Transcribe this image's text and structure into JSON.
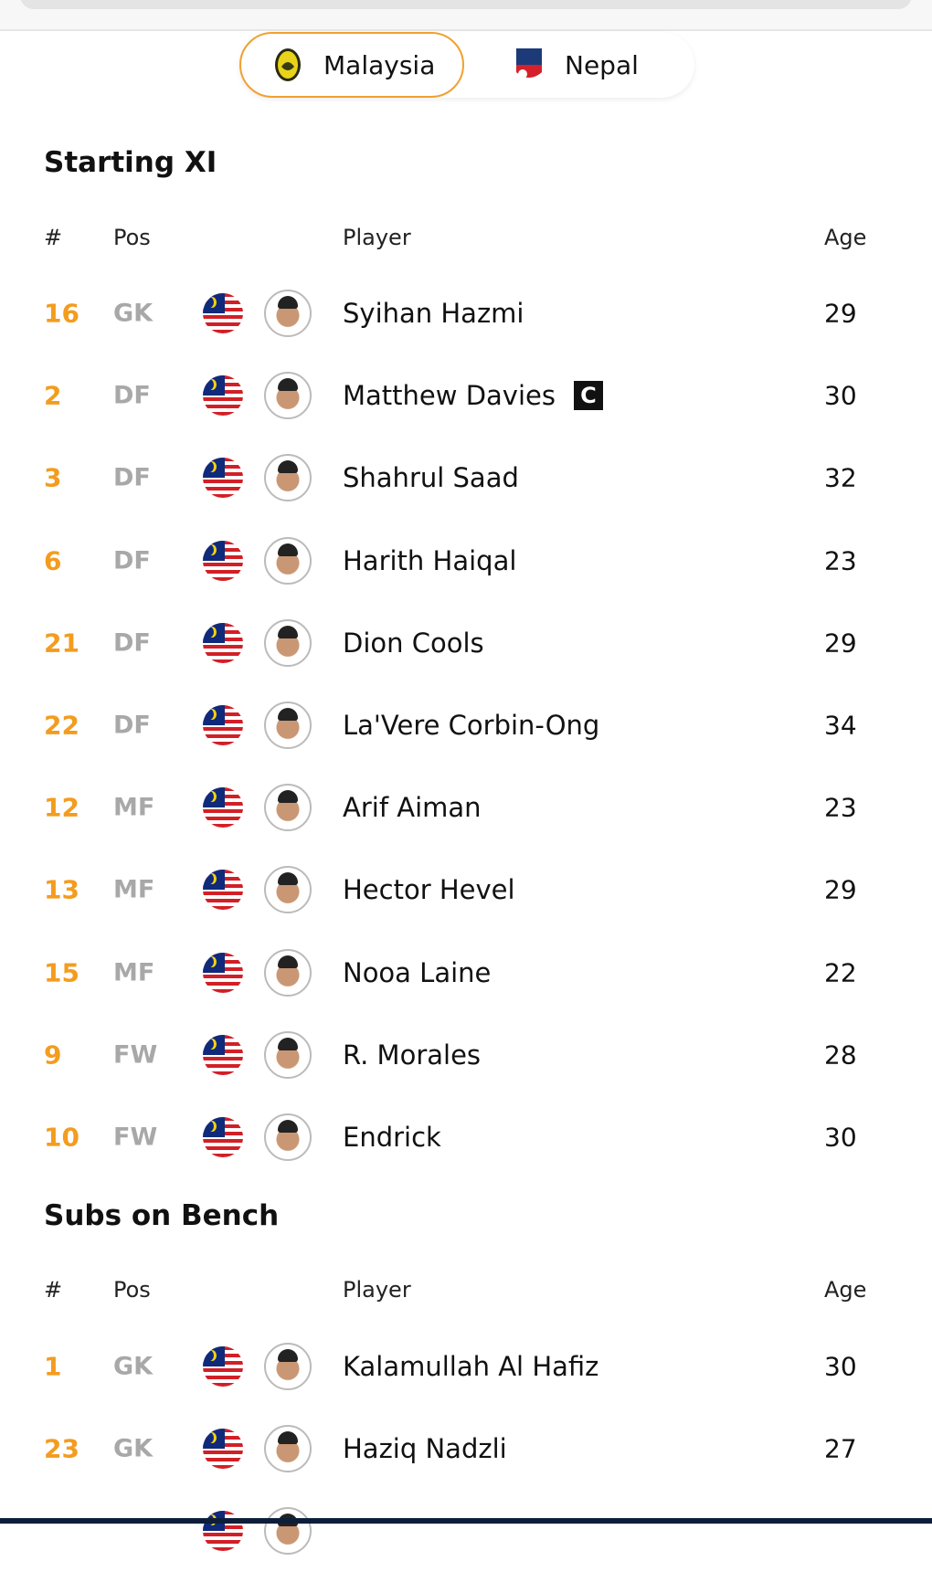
{
  "teams": [
    {
      "name": "Malaysia",
      "active": true,
      "icon": "malaysia-crest-icon"
    },
    {
      "name": "Nepal",
      "active": false,
      "icon": "nepal-crest-icon"
    }
  ],
  "columns": {
    "num": "#",
    "pos": "Pos",
    "player": "Player",
    "age": "Age"
  },
  "starting": {
    "title": "Starting XI",
    "players": [
      {
        "num": "16",
        "pos": "GK",
        "name": "Syihan Hazmi",
        "age": "29"
      },
      {
        "num": "2",
        "pos": "DF",
        "name": "Matthew Davies",
        "age": "30",
        "captain": "C"
      },
      {
        "num": "3",
        "pos": "DF",
        "name": "Shahrul Saad",
        "age": "32"
      },
      {
        "num": "6",
        "pos": "DF",
        "name": "Harith Haiqal",
        "age": "23"
      },
      {
        "num": "21",
        "pos": "DF",
        "name": "Dion Cools",
        "age": "29"
      },
      {
        "num": "22",
        "pos": "DF",
        "name": "La'Vere Corbin-Ong",
        "age": "34"
      },
      {
        "num": "12",
        "pos": "MF",
        "name": "Arif Aiman",
        "age": "23"
      },
      {
        "num": "13",
        "pos": "MF",
        "name": "Hector Hevel",
        "age": "29"
      },
      {
        "num": "15",
        "pos": "MF",
        "name": "Nooa Laine",
        "age": "22"
      },
      {
        "num": "9",
        "pos": "FW",
        "name": "R. Morales",
        "age": "28"
      },
      {
        "num": "10",
        "pos": "FW",
        "name": "Endrick",
        "age": "30"
      }
    ]
  },
  "bench": {
    "title": "Subs on Bench",
    "players": [
      {
        "num": "1",
        "pos": "GK",
        "name": "Kalamullah Al Hafiz",
        "age": "30"
      },
      {
        "num": "23",
        "pos": "GK",
        "name": "Haziq Nadzli",
        "age": "27"
      },
      {
        "num": "",
        "pos": "",
        "name": "",
        "age": ""
      }
    ]
  },
  "colors": {
    "accent": "#f39c1f",
    "position": "#a8a8a8",
    "flag_red": "#d21f26",
    "flag_blue": "#0f2a7a"
  }
}
